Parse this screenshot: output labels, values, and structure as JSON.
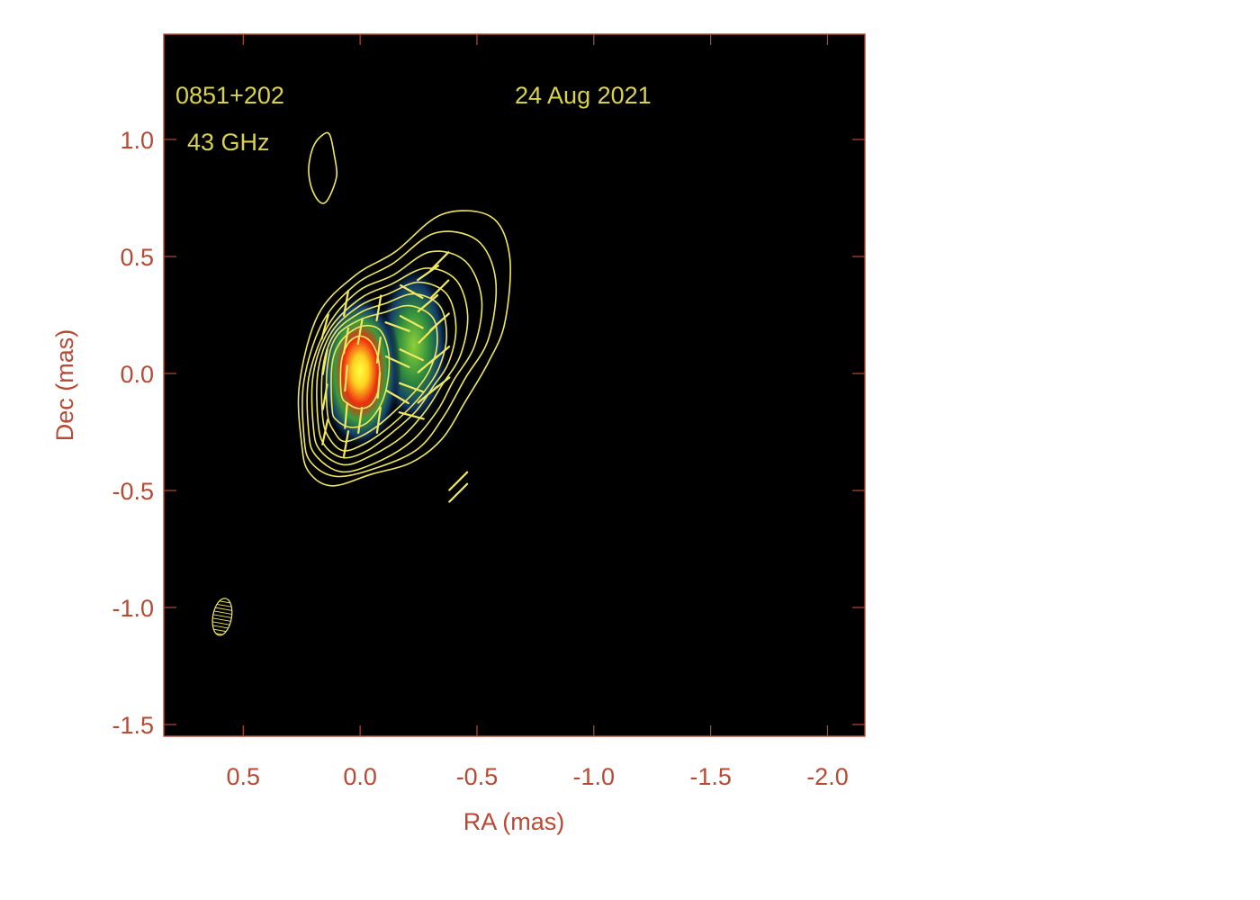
{
  "chart_data": {
    "type": "heatmap",
    "source_label": "0851+202",
    "frequency_label": "43 GHz",
    "date_label": "24 Aug 2021",
    "xlabel": "RA (mas)",
    "ylabel": "Dec (mas)",
    "xlim": [
      0.84,
      -2.16
    ],
    "ylim": [
      -1.55,
      1.45
    ],
    "x_direction": "decreasing",
    "xticks": [
      0.5,
      0.0,
      -0.5,
      -1.0,
      -1.5,
      -2.0
    ],
    "xtick_labels": [
      "0.5",
      "0.0",
      "-0.5",
      "-1.0",
      "-1.5",
      "-2.0"
    ],
    "yticks": [
      1.0,
      0.5,
      0.0,
      -0.5,
      -1.0,
      -1.5
    ],
    "ytick_labels": [
      "1.0",
      "0.5",
      "0.0",
      "-0.5",
      "-1.0",
      "-1.5"
    ],
    "colors": {
      "background": "#000000",
      "axis": "#b84a33",
      "annotation": "#d9d34a",
      "contour": "#f0e860"
    },
    "intensity_components": [
      {
        "x": 0.0,
        "y": 0.01,
        "peak": 1.0,
        "sigma_x": 0.055,
        "sigma_y": 0.13
      },
      {
        "x": -0.23,
        "y": 0.12,
        "peak": 0.55,
        "sigma_x": 0.05,
        "sigma_y": 0.14
      }
    ],
    "beam": {
      "x": 0.59,
      "y": -1.04,
      "major": 0.16,
      "minor": 0.08,
      "pa_deg": 10
    },
    "contours": [
      {
        "level": 1,
        "points": [
          [
            0.25,
            -0.3
          ],
          [
            0.26,
            -0.05
          ],
          [
            0.18,
            0.25
          ],
          [
            0.02,
            0.42
          ],
          [
            -0.15,
            0.52
          ],
          [
            -0.35,
            0.68
          ],
          [
            -0.56,
            0.67
          ],
          [
            -0.64,
            0.5
          ],
          [
            -0.62,
            0.22
          ],
          [
            -0.55,
            0.05
          ],
          [
            -0.45,
            -0.12
          ],
          [
            -0.35,
            -0.28
          ],
          [
            -0.22,
            -0.38
          ],
          [
            -0.05,
            -0.43
          ],
          [
            0.12,
            -0.48
          ],
          [
            0.22,
            -0.42
          ]
        ]
      },
      {
        "level": 2,
        "points": [
          [
            0.24,
            -0.27
          ],
          [
            0.24,
            -0.03
          ],
          [
            0.16,
            0.22
          ],
          [
            0.02,
            0.38
          ],
          [
            -0.14,
            0.47
          ],
          [
            -0.32,
            0.6
          ],
          [
            -0.5,
            0.57
          ],
          [
            -0.58,
            0.4
          ],
          [
            -0.55,
            0.15
          ],
          [
            -0.45,
            -0.02
          ],
          [
            -0.36,
            -0.18
          ],
          [
            -0.25,
            -0.32
          ],
          [
            -0.08,
            -0.4
          ],
          [
            0.1,
            -0.44
          ],
          [
            0.21,
            -0.38
          ]
        ]
      },
      {
        "level": 3,
        "points": [
          [
            0.22,
            -0.25
          ],
          [
            0.22,
            -0.02
          ],
          [
            0.14,
            0.2
          ],
          [
            0.01,
            0.35
          ],
          [
            -0.14,
            0.42
          ],
          [
            -0.3,
            0.52
          ],
          [
            -0.45,
            0.48
          ],
          [
            -0.52,
            0.32
          ],
          [
            -0.49,
            0.12
          ],
          [
            -0.4,
            -0.03
          ],
          [
            -0.33,
            -0.16
          ],
          [
            -0.22,
            -0.29
          ],
          [
            -0.07,
            -0.38
          ],
          [
            0.08,
            -0.42
          ],
          [
            0.19,
            -0.35
          ]
        ]
      },
      {
        "level": 4,
        "points": [
          [
            0.2,
            -0.23
          ],
          [
            0.2,
            0.0
          ],
          [
            0.13,
            0.19
          ],
          [
            0.0,
            0.32
          ],
          [
            -0.13,
            0.38
          ],
          [
            -0.28,
            0.45
          ],
          [
            -0.41,
            0.4
          ],
          [
            -0.46,
            0.25
          ],
          [
            -0.43,
            0.08
          ],
          [
            -0.35,
            -0.05
          ],
          [
            -0.28,
            -0.16
          ],
          [
            -0.18,
            -0.27
          ],
          [
            -0.05,
            -0.35
          ],
          [
            0.07,
            -0.39
          ],
          [
            0.17,
            -0.33
          ]
        ]
      },
      {
        "level": 5,
        "points": [
          [
            0.18,
            -0.21
          ],
          [
            0.18,
            0.01
          ],
          [
            0.12,
            0.18
          ],
          [
            0.0,
            0.29
          ],
          [
            -0.12,
            0.34
          ],
          [
            -0.25,
            0.39
          ],
          [
            -0.37,
            0.34
          ],
          [
            -0.41,
            0.2
          ],
          [
            -0.38,
            0.05
          ],
          [
            -0.31,
            -0.06
          ],
          [
            -0.24,
            -0.16
          ],
          [
            -0.14,
            -0.25
          ],
          [
            -0.03,
            -0.33
          ],
          [
            0.07,
            -0.36
          ],
          [
            0.15,
            -0.31
          ]
        ]
      },
      {
        "level": 6,
        "points": [
          [
            0.16,
            -0.19
          ],
          [
            0.16,
            0.02
          ],
          [
            0.11,
            0.17
          ],
          [
            0.0,
            0.26
          ],
          [
            -0.11,
            0.3
          ],
          [
            -0.23,
            0.34
          ],
          [
            -0.34,
            0.29
          ],
          [
            -0.37,
            0.16
          ],
          [
            -0.34,
            0.03
          ],
          [
            -0.28,
            -0.07
          ],
          [
            -0.21,
            -0.15
          ],
          [
            -0.11,
            -0.24
          ],
          [
            -0.02,
            -0.3
          ],
          [
            0.07,
            -0.33
          ],
          [
            0.13,
            -0.28
          ]
        ]
      },
      {
        "level": 7,
        "points": [
          [
            0.14,
            -0.17
          ],
          [
            0.14,
            0.03
          ],
          [
            0.1,
            0.16
          ],
          [
            0.0,
            0.23
          ],
          [
            -0.1,
            0.26
          ],
          [
            -0.21,
            0.29
          ],
          [
            -0.31,
            0.24
          ],
          [
            -0.33,
            0.13
          ],
          [
            -0.3,
            0.02
          ],
          [
            -0.24,
            -0.07
          ],
          [
            -0.17,
            -0.14
          ],
          [
            -0.08,
            -0.22
          ],
          [
            0.0,
            -0.27
          ],
          [
            0.07,
            -0.29
          ],
          [
            0.11,
            -0.25
          ]
        ]
      },
      {
        "level": 8,
        "points": [
          [
            0.12,
            -0.15
          ],
          [
            0.12,
            0.04
          ],
          [
            0.08,
            0.14
          ],
          [
            0.0,
            0.2
          ],
          [
            -0.08,
            0.19
          ],
          [
            -0.12,
            0.1
          ],
          [
            -0.12,
            -0.02
          ],
          [
            -0.09,
            -0.13
          ],
          [
            -0.03,
            -0.21
          ],
          [
            0.04,
            -0.23
          ],
          [
            0.1,
            -0.2
          ]
        ]
      },
      {
        "level": 9,
        "points": [
          [
            0.08,
            -0.09
          ],
          [
            0.08,
            0.05
          ],
          [
            0.05,
            0.13
          ],
          [
            0.0,
            0.16
          ],
          [
            -0.05,
            0.13
          ],
          [
            -0.08,
            0.05
          ],
          [
            -0.08,
            -0.06
          ],
          [
            -0.05,
            -0.13
          ],
          [
            0.0,
            -0.15
          ],
          [
            0.05,
            -0.13
          ]
        ]
      },
      {
        "level": 10,
        "points": [
          [
            0.13,
            1.02
          ],
          [
            0.11,
            0.93
          ],
          [
            0.1,
            0.85
          ],
          [
            0.12,
            0.78
          ],
          [
            0.15,
            0.73
          ],
          [
            0.18,
            0.74
          ],
          [
            0.21,
            0.8
          ],
          [
            0.22,
            0.88
          ],
          [
            0.2,
            0.97
          ],
          [
            0.16,
            1.02
          ]
        ]
      }
    ],
    "evpa_vectors": [
      {
        "x": 0.06,
        "y": 0.3,
        "angle_deg": 80
      },
      {
        "x": 0.06,
        "y": 0.14,
        "angle_deg": 80
      },
      {
        "x": 0.06,
        "y": -0.02,
        "angle_deg": 85
      },
      {
        "x": 0.06,
        "y": -0.18,
        "angle_deg": 85
      },
      {
        "x": 0.06,
        "y": -0.3,
        "angle_deg": 80
      },
      {
        "x": 0.15,
        "y": 0.2,
        "angle_deg": 75
      },
      {
        "x": 0.15,
        "y": 0.05,
        "angle_deg": 80
      },
      {
        "x": 0.15,
        "y": -0.1,
        "angle_deg": 80
      },
      {
        "x": 0.15,
        "y": -0.25,
        "angle_deg": 78
      },
      {
        "x": 0.0,
        "y": 0.18,
        "angle_deg": 80
      },
      {
        "x": 0.0,
        "y": -0.2,
        "angle_deg": 82
      },
      {
        "x": -0.08,
        "y": 0.28,
        "angle_deg": 80
      },
      {
        "x": -0.08,
        "y": 0.1,
        "angle_deg": 82
      },
      {
        "x": -0.08,
        "y": -0.05,
        "angle_deg": 85
      },
      {
        "x": -0.08,
        "y": -0.2,
        "angle_deg": 82
      },
      {
        "x": -0.16,
        "y": 0.2,
        "angle_deg": -20
      },
      {
        "x": -0.16,
        "y": 0.05,
        "angle_deg": -25
      },
      {
        "x": -0.16,
        "y": -0.1,
        "angle_deg": -30
      },
      {
        "x": -0.22,
        "y": 0.35,
        "angle_deg": -30
      },
      {
        "x": -0.22,
        "y": 0.22,
        "angle_deg": -28
      },
      {
        "x": -0.22,
        "y": 0.08,
        "angle_deg": -25
      },
      {
        "x": -0.22,
        "y": -0.06,
        "angle_deg": -20
      },
      {
        "x": -0.22,
        "y": -0.18,
        "angle_deg": -15
      },
      {
        "x": -0.29,
        "y": 0.43,
        "angle_deg": 35
      },
      {
        "x": -0.29,
        "y": 0.3,
        "angle_deg": 40
      },
      {
        "x": -0.29,
        "y": 0.17,
        "angle_deg": 45
      },
      {
        "x": -0.29,
        "y": 0.04,
        "angle_deg": 40
      },
      {
        "x": -0.29,
        "y": -0.09,
        "angle_deg": 40
      },
      {
        "x": -0.34,
        "y": 0.48,
        "angle_deg": 45
      },
      {
        "x": -0.34,
        "y": 0.36,
        "angle_deg": 45
      },
      {
        "x": -0.34,
        "y": 0.22,
        "angle_deg": 42
      },
      {
        "x": -0.34,
        "y": 0.08,
        "angle_deg": 40
      },
      {
        "x": -0.34,
        "y": -0.05,
        "angle_deg": 38
      },
      {
        "x": -0.42,
        "y": -0.46,
        "angle_deg": 45
      },
      {
        "x": -0.42,
        "y": -0.51,
        "angle_deg": 45
      }
    ]
  }
}
